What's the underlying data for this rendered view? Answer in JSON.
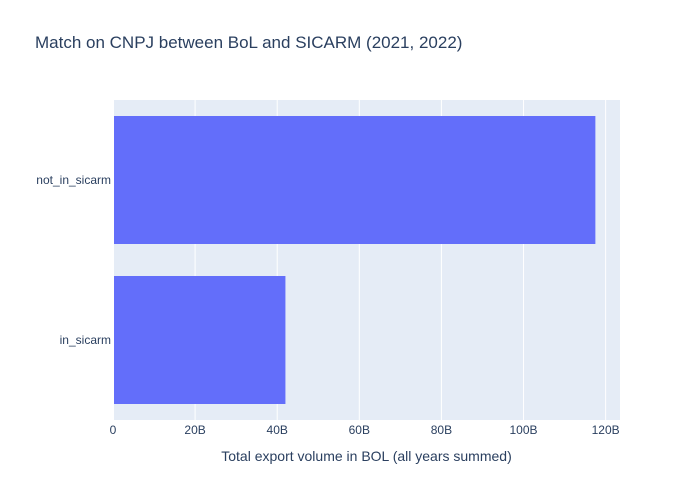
{
  "chart_data": {
    "type": "bar",
    "orientation": "horizontal",
    "title": "Match on CNPJ between BoL and SICARM (2021, 2022)",
    "xlabel": "Total export volume in BOL (all years summed)",
    "ylabel": "",
    "categories": [
      "in_sicarm",
      "not_in_sicarm"
    ],
    "values": [
      42000000000,
      117500000000
    ],
    "xlim": [
      0,
      123500000000
    ],
    "xticks": [
      0,
      20000000000,
      40000000000,
      60000000000,
      80000000000,
      100000000000,
      120000000000
    ],
    "xtick_labels": [
      "0",
      "20B",
      "40B",
      "60B",
      "80B",
      "100B",
      "120B"
    ],
    "grid": true,
    "colors": {
      "bar": "#636efa",
      "plot_bg": "#e5ecf6",
      "grid": "#ffffff",
      "text": "#2a3f5f"
    }
  }
}
